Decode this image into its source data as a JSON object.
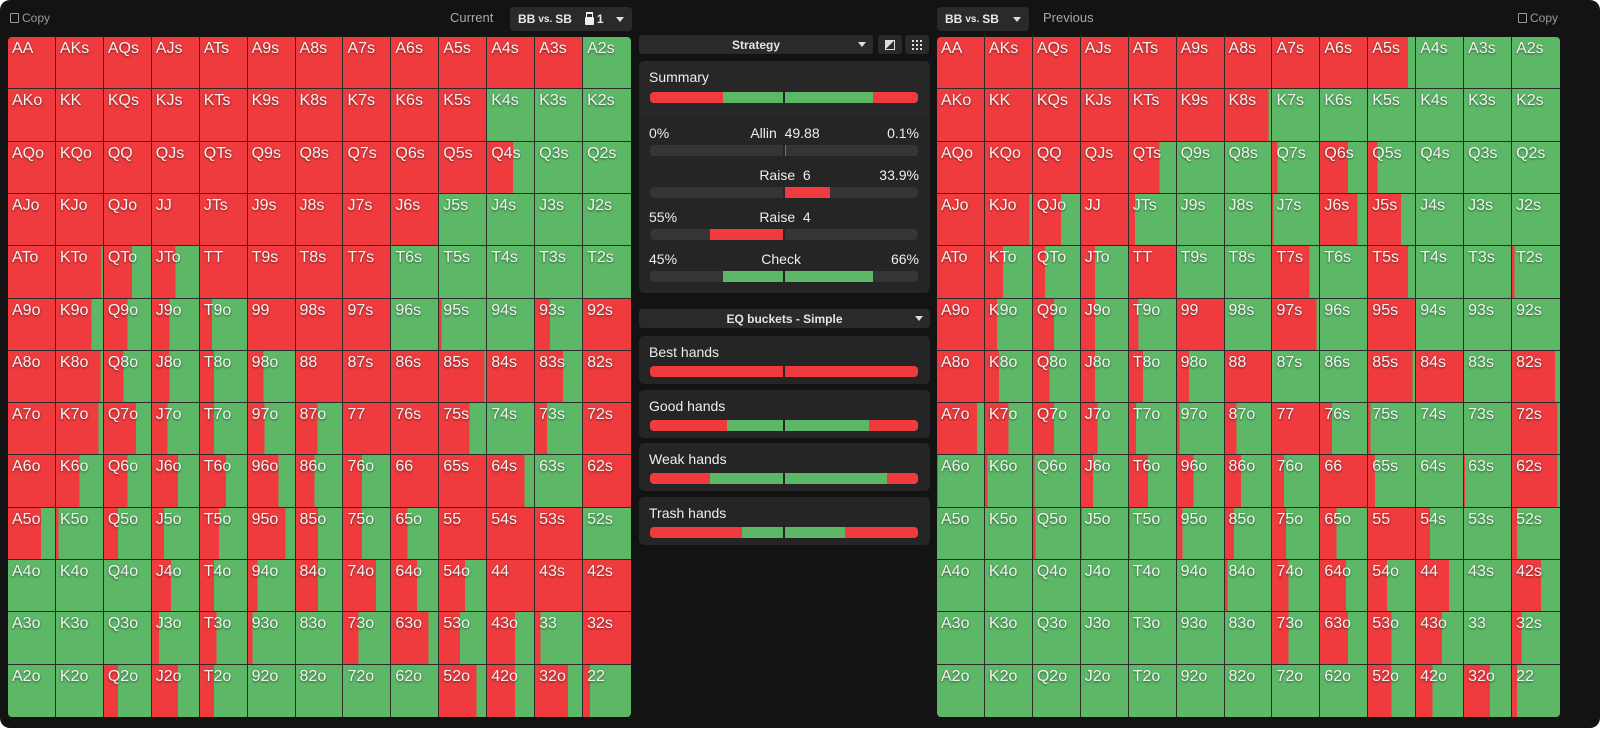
{
  "header": {
    "copy_left": "Copy",
    "current_label": "Current",
    "current_select": {
      "left": "BB",
      "mid": "vs.",
      "right": "SB"
    },
    "lock_count": "1",
    "previous_select": {
      "left": "BB",
      "mid": "vs.",
      "right": "SB"
    },
    "previous_label": "Previous",
    "copy_right": "Copy"
  },
  "colors": {
    "raise": "#ef3b3e",
    "check": "#5cb866",
    "allin": "#7d1a1a",
    "background": "#131313"
  },
  "center": {
    "strategy_select": "Strategy",
    "icons": [
      "contrast-icon",
      "grid-icon"
    ],
    "summary": {
      "title": "Summary",
      "current_raise": 0.55,
      "previous_raise": 0.34,
      "actions": [
        {
          "name": "Allin",
          "size": "49.88",
          "current": "0%",
          "previous": "0.1%",
          "current_value": 0,
          "previous_value": 0.001
        },
        {
          "name": "Raise",
          "size": "6",
          "current": "",
          "previous": "33.9%",
          "current_value": 0,
          "previous_value": 0.339
        },
        {
          "name": "Raise",
          "size": "4",
          "current": "55%",
          "previous": "",
          "current_value": 0.55,
          "previous_value": 0
        },
        {
          "name": "Check",
          "size": "",
          "current": "45%",
          "previous": "66%",
          "current_value": 0.45,
          "previous_value": 0.66
        }
      ]
    },
    "eq_select": "EQ buckets - Simple",
    "buckets": [
      {
        "label": "Best hands",
        "current_raise": 1.0,
        "previous_raise": 1.0
      },
      {
        "label": "Good hands",
        "current_raise": 0.58,
        "previous_raise": 0.37
      },
      {
        "label": "Weak hands",
        "current_raise": 0.45,
        "previous_raise": 0.23
      },
      {
        "label": "Trash hands",
        "current_raise": 0.69,
        "previous_raise": 0.55
      }
    ]
  },
  "hands": [
    [
      "AA",
      "AKs",
      "AQs",
      "AJs",
      "ATs",
      "A9s",
      "A8s",
      "A7s",
      "A6s",
      "A5s",
      "A4s",
      "A3s",
      "A2s"
    ],
    [
      "AKo",
      "KK",
      "KQs",
      "KJs",
      "KTs",
      "K9s",
      "K8s",
      "K7s",
      "K6s",
      "K5s",
      "K4s",
      "K3s",
      "K2s"
    ],
    [
      "AQo",
      "KQo",
      "QQ",
      "QJs",
      "QTs",
      "Q9s",
      "Q8s",
      "Q7s",
      "Q6s",
      "Q5s",
      "Q4s",
      "Q3s",
      "Q2s"
    ],
    [
      "AJo",
      "KJo",
      "QJo",
      "JJ",
      "JTs",
      "J9s",
      "J8s",
      "J7s",
      "J6s",
      "J5s",
      "J4s",
      "J3s",
      "J2s"
    ],
    [
      "ATo",
      "KTo",
      "QTo",
      "JTo",
      "TT",
      "T9s",
      "T8s",
      "T7s",
      "T6s",
      "T5s",
      "T4s",
      "T3s",
      "T2s"
    ],
    [
      "A9o",
      "K9o",
      "Q9o",
      "J9o",
      "T9o",
      "99",
      "98s",
      "97s",
      "96s",
      "95s",
      "94s",
      "93s",
      "92s"
    ],
    [
      "A8o",
      "K8o",
      "Q8o",
      "J8o",
      "T8o",
      "98o",
      "88",
      "87s",
      "86s",
      "85s",
      "84s",
      "83s",
      "82s"
    ],
    [
      "A7o",
      "K7o",
      "Q7o",
      "J7o",
      "T7o",
      "97o",
      "87o",
      "77",
      "76s",
      "75s",
      "74s",
      "73s",
      "72s"
    ],
    [
      "A6o",
      "K6o",
      "Q6o",
      "J6o",
      "T6o",
      "96o",
      "86o",
      "76o",
      "66",
      "65s",
      "64s",
      "63s",
      "62s"
    ],
    [
      "A5o",
      "K5o",
      "Q5o",
      "J5o",
      "T5o",
      "95o",
      "85o",
      "75o",
      "65o",
      "55",
      "54s",
      "53s",
      "52s"
    ],
    [
      "A4o",
      "K4o",
      "Q4o",
      "J4o",
      "T4o",
      "94o",
      "84o",
      "74o",
      "64o",
      "54o",
      "44",
      "43s",
      "42s"
    ],
    [
      "A3o",
      "K3o",
      "Q3o",
      "J3o",
      "T3o",
      "93o",
      "83o",
      "73o",
      "63o",
      "53o",
      "43o",
      "33",
      "32s"
    ],
    [
      "A2o",
      "K2o",
      "Q2o",
      "J2o",
      "T2o",
      "92o",
      "82o",
      "72o",
      "62o",
      "52o",
      "42o",
      "32o",
      "22"
    ]
  ],
  "current_raise_freq": [
    [
      1,
      1,
      1,
      1,
      1,
      1,
      1,
      1,
      1,
      1,
      1,
      1,
      0
    ],
    [
      1,
      1,
      1,
      1,
      1,
      1,
      1,
      1,
      1,
      1,
      0,
      0,
      0
    ],
    [
      1,
      1,
      1,
      1,
      1,
      1,
      1,
      1,
      1,
      1,
      0.55,
      0,
      0
    ],
    [
      1,
      1,
      1,
      1,
      1,
      1,
      1,
      1,
      1,
      0,
      0,
      0,
      0
    ],
    [
      1,
      0.97,
      0.6,
      0.5,
      1,
      1,
      1,
      1,
      0,
      0,
      0,
      0,
      0
    ],
    [
      1,
      0.75,
      0.5,
      0.37,
      0.25,
      1,
      1,
      1,
      0,
      0.05,
      0,
      0.32,
      1
    ],
    [
      1,
      0.95,
      0.42,
      0.37,
      0.3,
      0.33,
      1,
      1,
      1,
      0.97,
      1,
      0.6,
      1
    ],
    [
      1,
      0.9,
      0.68,
      0.33,
      0.3,
      0.35,
      0.47,
      1,
      1,
      0.65,
      0,
      0.25,
      1
    ],
    [
      1,
      0.5,
      0.5,
      0.55,
      0.55,
      0.65,
      0.4,
      0.4,
      1,
      1,
      0.8,
      0,
      1
    ],
    [
      0.7,
      0.05,
      0.3,
      0.25,
      0.4,
      0.8,
      0.48,
      0.4,
      0.35,
      1,
      1,
      1,
      0
    ],
    [
      0,
      0,
      0,
      0.4,
      0.3,
      0.2,
      0.48,
      0.7,
      0.55,
      0.55,
      1,
      1,
      1
    ],
    [
      0,
      0,
      0,
      0.15,
      0.35,
      0.1,
      0,
      0.33,
      0.8,
      0.45,
      0.6,
      0.12,
      1
    ],
    [
      0,
      0,
      0.3,
      0.55,
      0.3,
      0,
      0,
      0,
      0,
      0.8,
      0.6,
      0.7,
      0.15
    ]
  ],
  "previous_raise_freq": [
    [
      1,
      1,
      1,
      1,
      1,
      1,
      1,
      1,
      1,
      0.85,
      0,
      0,
      0
    ],
    [
      1,
      1,
      1,
      1,
      1,
      1,
      0.95,
      0,
      0,
      0,
      0,
      0,
      0
    ],
    [
      1,
      1,
      1,
      1,
      0.65,
      0,
      0,
      0.12,
      0.6,
      0.2,
      0,
      0,
      0
    ],
    [
      1,
      0.95,
      0.6,
      1,
      0.13,
      0,
      0,
      0.03,
      0.8,
      0.7,
      0,
      0,
      0
    ],
    [
      1,
      0.38,
      0.25,
      0.3,
      1,
      0,
      0,
      0.8,
      0,
      0.85,
      0,
      0,
      0.05
    ],
    [
      1,
      0.25,
      0.45,
      0.3,
      0.2,
      1,
      0,
      0.95,
      0,
      1,
      0,
      0,
      0
    ],
    [
      1,
      0.3,
      0.35,
      0.3,
      0.3,
      0.25,
      1,
      0,
      0,
      0.95,
      1,
      0,
      0.9
    ],
    [
      0.85,
      0.5,
      0.45,
      0.35,
      0.15,
      0.05,
      0.25,
      1,
      0.25,
      0.05,
      0,
      0,
      0.95
    ],
    [
      0.02,
      0.05,
      0.03,
      0.25,
      0.4,
      0.35,
      0.35,
      0.25,
      1,
      0.15,
      0,
      0.02,
      0.95
    ],
    [
      0,
      0,
      0.05,
      0.02,
      0.02,
      0.12,
      0.2,
      0.3,
      0.35,
      1,
      0.3,
      0,
      0.1
    ],
    [
      0,
      0,
      0,
      0,
      0,
      0,
      0.05,
      0.35,
      0.55,
      0.4,
      0.7,
      0,
      0.6
    ],
    [
      0,
      0,
      0,
      0,
      0,
      0,
      0,
      0.35,
      0.6,
      0.5,
      0.55,
      0,
      0.2
    ],
    [
      0,
      0,
      0,
      0,
      0,
      0,
      0,
      0,
      0,
      0.5,
      0.35,
      0.55,
      0.1
    ]
  ]
}
